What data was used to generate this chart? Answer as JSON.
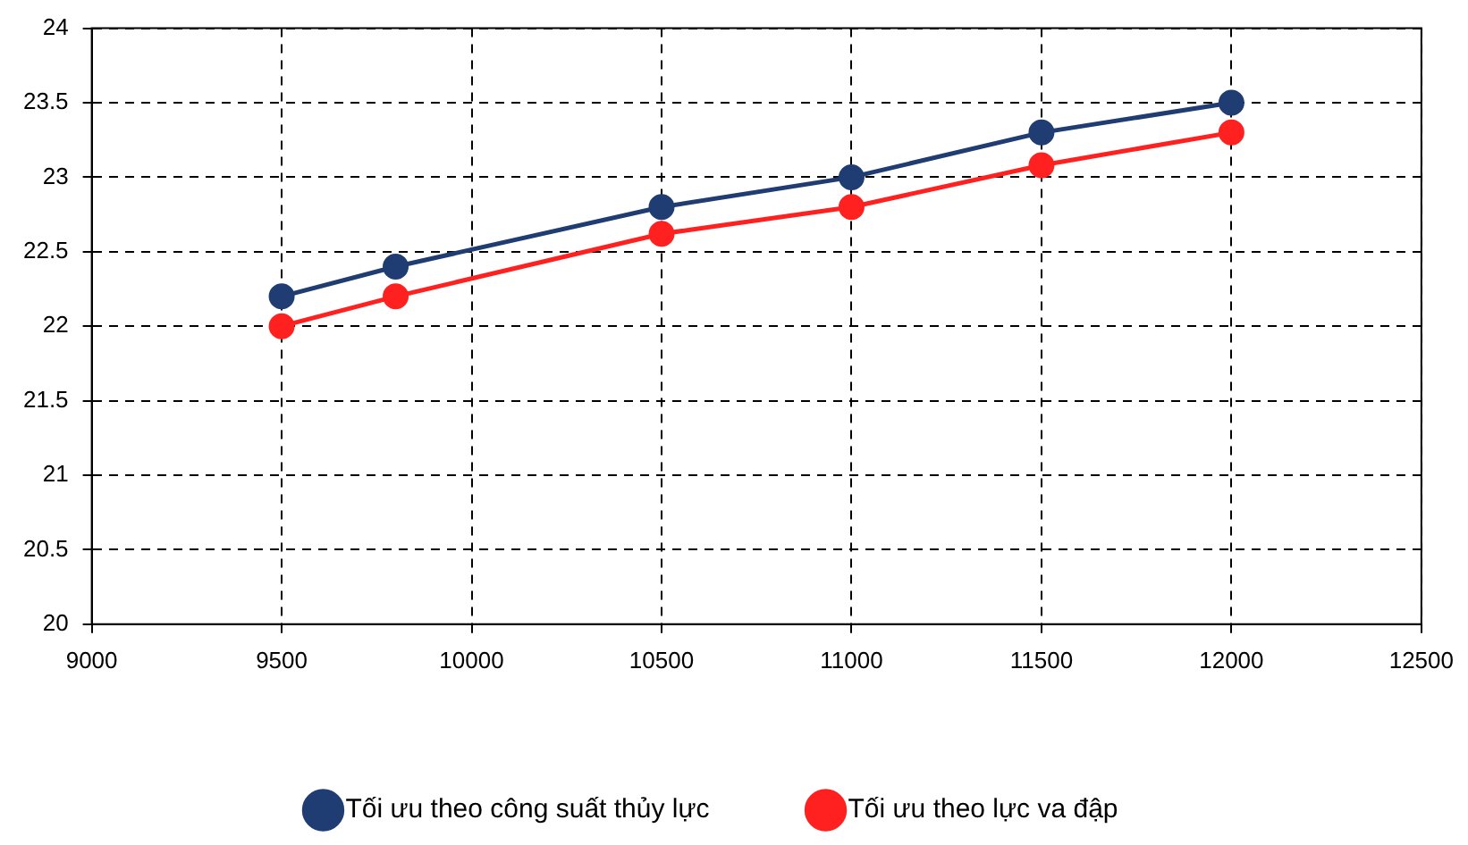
{
  "chart_data": {
    "type": "line",
    "x": [
      9500,
      9800,
      10500,
      11000,
      11500,
      12000
    ],
    "series": [
      {
        "name": "Tối ưu theo công suất thủy lực",
        "color": "#1f3c73",
        "values": [
          22.2,
          22.4,
          22.8,
          23.0,
          23.3,
          23.5
        ]
      },
      {
        "name": "Tối ưu theo lực va đập",
        "color": "#ff2020",
        "values": [
          22.0,
          22.2,
          22.62,
          22.8,
          23.08,
          23.3
        ]
      }
    ],
    "xlim": [
      9000,
      12500
    ],
    "xticks": [
      9000,
      9500,
      10000,
      10500,
      11000,
      11500,
      12000,
      12500
    ],
    "ylim": [
      20,
      24
    ],
    "yticks": [
      20,
      20.5,
      21,
      21.5,
      22,
      22.5,
      23,
      23.5,
      24
    ],
    "grid": true,
    "legend": "bottom",
    "marker": "circle",
    "line_style": "solid"
  }
}
